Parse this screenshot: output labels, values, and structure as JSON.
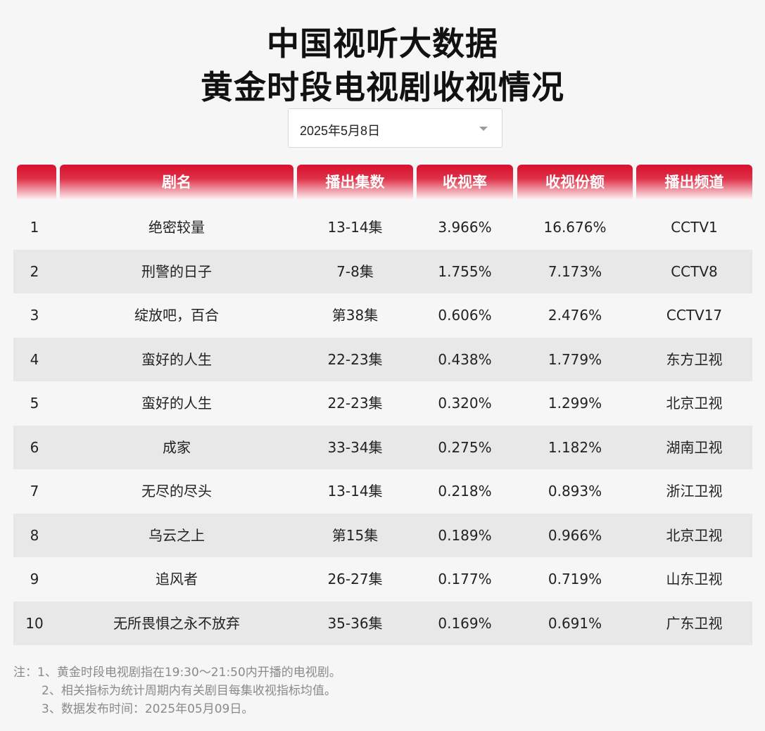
{
  "title_line1": "中国视听大数据",
  "title_line2": "黄金时段电视剧收视情况",
  "date_selector": {
    "value": "2025年5月8日",
    "icon": "chevron-down-icon"
  },
  "headers": [
    "",
    "剧名",
    "播出集数",
    "收视率",
    "收视份额",
    "播出频道"
  ],
  "rows": [
    {
      "rank": "1",
      "name": "绝密较量",
      "episodes": "13-14集",
      "rating": "3.966%",
      "share": "16.676%",
      "channel": "CCTV1"
    },
    {
      "rank": "2",
      "name": "刑警的日子",
      "episodes": "7-8集",
      "rating": "1.755%",
      "share": "7.173%",
      "channel": "CCTV8"
    },
    {
      "rank": "3",
      "name": "绽放吧，百合",
      "episodes": "第38集",
      "rating": "0.606%",
      "share": "2.476%",
      "channel": "CCTV17"
    },
    {
      "rank": "4",
      "name": "蛮好的人生",
      "episodes": "22-23集",
      "rating": "0.438%",
      "share": "1.779%",
      "channel": "东方卫视"
    },
    {
      "rank": "5",
      "name": "蛮好的人生",
      "episodes": "22-23集",
      "rating": "0.320%",
      "share": "1.299%",
      "channel": "北京卫视"
    },
    {
      "rank": "6",
      "name": "成家",
      "episodes": "33-34集",
      "rating": "0.275%",
      "share": "1.182%",
      "channel": "湖南卫视"
    },
    {
      "rank": "7",
      "name": "无尽的尽头",
      "episodes": "13-14集",
      "rating": "0.218%",
      "share": "0.893%",
      "channel": "浙江卫视"
    },
    {
      "rank": "8",
      "name": "乌云之上",
      "episodes": "第15集",
      "rating": "0.189%",
      "share": "0.966%",
      "channel": "北京卫视"
    },
    {
      "rank": "9",
      "name": "追风者",
      "episodes": "26-27集",
      "rating": "0.177%",
      "share": "0.719%",
      "channel": "山东卫视"
    },
    {
      "rank": "10",
      "name": "无所畏惧之永不放弃",
      "episodes": "35-36集",
      "rating": "0.169%",
      "share": "0.691%",
      "channel": "广东卫视"
    }
  ],
  "notes": [
    "注：1、黄金时段电视剧指在19:30～21:50内开播的电视剧。",
    "2、相关指标为统计周期内有关剧目每集收视指标均值。",
    "3、数据发布时间：2025年05月09日。"
  ],
  "colors": {
    "header_red": "#d8112e",
    "row_alt": "#e8e8e8",
    "background": "#f6f6f6"
  }
}
